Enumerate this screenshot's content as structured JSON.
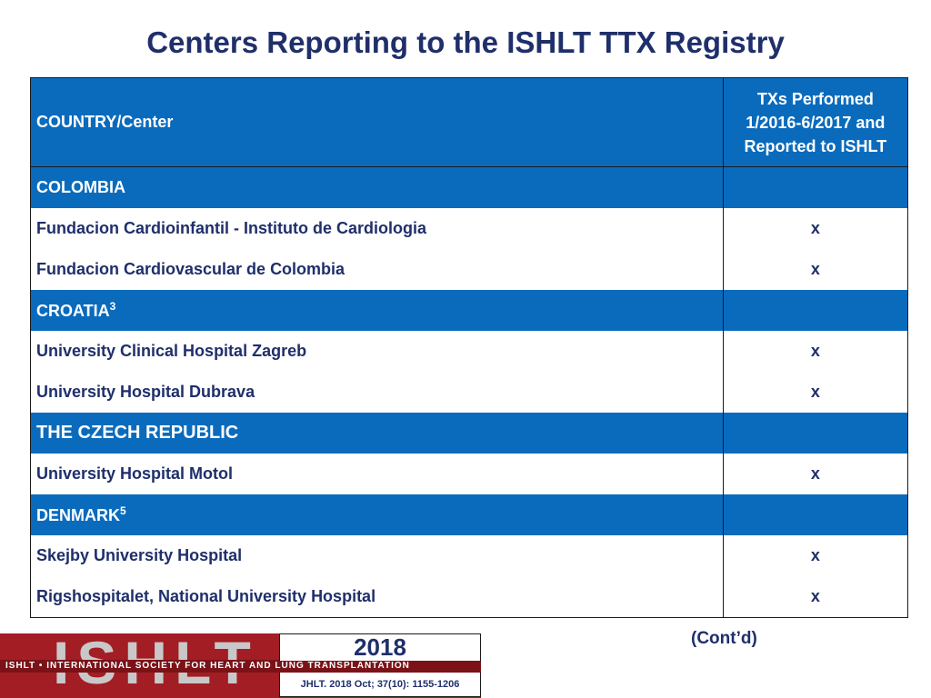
{
  "title": "Centers Reporting to the ISHLT TTX Registry",
  "table": {
    "header": {
      "col1": "COUNTRY/Center",
      "col2_line1": "TXs Performed",
      "col2_line2": "1/2016-6/2017 and",
      "col2_line3": "Reported to ISHLT"
    },
    "colombia": {
      "name": "COLOMBIA",
      "centers": [
        {
          "name": "Fundacion Cardioinfantil - Instituto de Cardiologia",
          "mark": "x"
        },
        {
          "name": "Fundacion Cardiovascular de Colombia",
          "mark": "x"
        }
      ]
    },
    "croatia": {
      "name": "CROATIA",
      "sup": "3",
      "centers": [
        {
          "name": "University Clinical Hospital Zagreb",
          "mark": "x"
        },
        {
          "name": "University Hospital Dubrava",
          "mark": "x"
        }
      ]
    },
    "czech": {
      "name": "THE CZECH REPUBLIC",
      "centers": [
        {
          "name": "University Hospital Motol",
          "mark": "x"
        }
      ]
    },
    "denmark": {
      "name": "DENMARK",
      "sup": "5",
      "centers": [
        {
          "name": "Skejby University Hospital",
          "mark": "x"
        },
        {
          "name": "Rigshospitalet, National University Hospital",
          "mark": "x"
        }
      ]
    }
  },
  "contd": "(Cont’d)",
  "footer": {
    "logo_letters": "ISHLT",
    "logo_strip": "ISHLT • INTERNATIONAL SOCIETY FOR HEART AND LUNG TRANSPLANTATION",
    "year": "2018",
    "citation": "JHLT. 2018 Oct; 37(10): 1155-1206"
  },
  "colors": {
    "title": "#1f2f6b",
    "header_bg": "#0a6bbd",
    "logo_red": "#a31d24"
  }
}
